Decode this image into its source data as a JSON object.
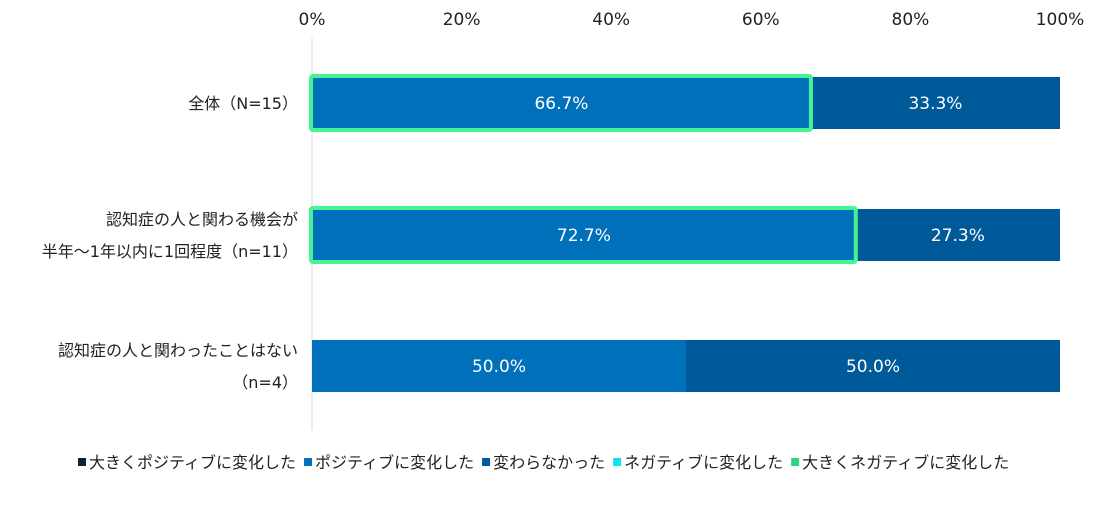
{
  "chart_data": {
    "type": "bar",
    "orientation": "horizontal-stacked-100",
    "title": "",
    "xlim": [
      0,
      100
    ],
    "x_ticks": [
      "0%",
      "20%",
      "40%",
      "60%",
      "80%",
      "100%"
    ],
    "categories": [
      [
        "全体（N=15）"
      ],
      [
        "認知症の人と関わる機会が",
        "半年〜1年以内に1回程度（n=11）"
      ],
      [
        "認知症の人と関わったことはない",
        "（n=4）"
      ]
    ],
    "series": [
      {
        "name": "大きくポジティブに変化した",
        "color": "#0B1F3F",
        "values": [
          0,
          0,
          0
        ],
        "labels": [
          "",
          "",
          ""
        ]
      },
      {
        "name": "ポジティブに変化した",
        "color": "#0070BB",
        "values": [
          66.7,
          72.7,
          50.0
        ],
        "labels": [
          "66.7%",
          "72.7%",
          "50.0%"
        ]
      },
      {
        "name": "変わらなかった",
        "color": "#005A9A",
        "values": [
          33.3,
          27.3,
          50.0
        ],
        "labels": [
          "33.3%",
          "27.3%",
          "50.0%"
        ]
      },
      {
        "name": "ネガティブに変化した",
        "color": "#11E0F0",
        "values": [
          0,
          0,
          0
        ],
        "labels": [
          "",
          "",
          ""
        ]
      },
      {
        "name": "大きくネガティブに変化した",
        "color": "#2ED47A",
        "values": [
          0,
          0,
          0
        ],
        "labels": [
          "",
          "",
          ""
        ]
      }
    ],
    "highlight": {
      "series": "ポジティブに変化した",
      "rows": [
        0,
        1
      ],
      "color": "#44F593"
    },
    "legend_position": "bottom",
    "grid": false
  }
}
